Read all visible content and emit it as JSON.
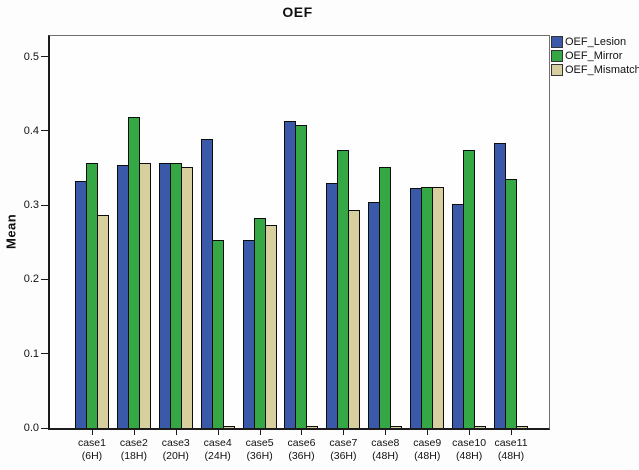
{
  "window": {
    "background": "#fdfdfd"
  },
  "chart_data": {
    "type": "bar",
    "title": "OEF",
    "xlabel": "",
    "ylabel": "Mean",
    "ylim": [
      0,
      0.525
    ],
    "y_ticks": [
      0.0,
      0.1,
      0.2,
      0.3,
      0.4,
      0.5
    ],
    "grid": false,
    "legend_position": "top-right",
    "axis_color": "#1c1c1c",
    "bar_outline_color": "#0d0d0d",
    "categories": [
      {
        "label": "case1",
        "sub": "(6H)"
      },
      {
        "label": "case2",
        "sub": "(18H)"
      },
      {
        "label": "case3",
        "sub": "(20H)"
      },
      {
        "label": "case4",
        "sub": "(24H)"
      },
      {
        "label": "case5",
        "sub": "(36H)"
      },
      {
        "label": "case6",
        "sub": "(36H)"
      },
      {
        "label": "case7",
        "sub": "(36H)"
      },
      {
        "label": "case8",
        "sub": "(48H)"
      },
      {
        "label": "case9",
        "sub": "(48H)"
      },
      {
        "label": "case10",
        "sub": "(48H)"
      },
      {
        "label": "case11",
        "sub": "(48H)"
      }
    ],
    "series": [
      {
        "name": "OEF_Lesion",
        "color": "#3A59A8",
        "values": [
          0.332,
          0.354,
          0.356,
          0.389,
          0.253,
          0.413,
          0.33,
          0.304,
          0.323,
          0.302,
          0.383
        ]
      },
      {
        "name": "OEF_Mirror",
        "color": "#35A845",
        "values": [
          0.357,
          0.419,
          0.357,
          0.253,
          0.282,
          0.408,
          0.374,
          0.351,
          0.324,
          0.374,
          0.335
        ]
      },
      {
        "name": "OEF_Mismatch",
        "color": "#D7D09E",
        "values": [
          0.287,
          0.357,
          0.351,
          0.002,
          0.273,
          0.002,
          0.293,
          0.002,
          0.324,
          0.002,
          0.002
        ]
      }
    ]
  }
}
